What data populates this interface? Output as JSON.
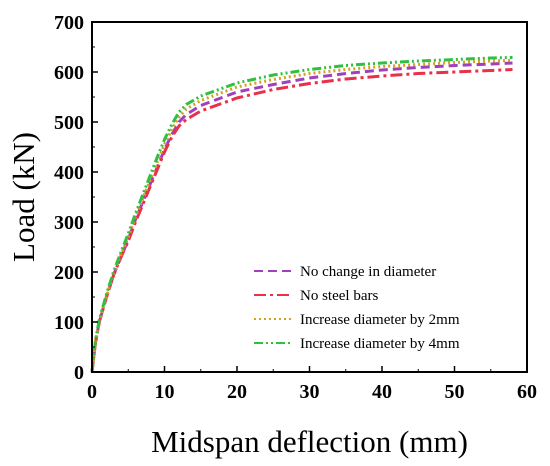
{
  "chart_data": {
    "type": "line",
    "title": "",
    "xlabel": "Midspan deflection (mm)",
    "ylabel": "Load (kN)",
    "xlim": [
      0,
      60
    ],
    "ylim": [
      0,
      700
    ],
    "x_ticks": [
      0,
      10,
      20,
      30,
      40,
      50,
      60
    ],
    "y_ticks": [
      0,
      100,
      200,
      300,
      400,
      500,
      600,
      700
    ],
    "grid": false,
    "legend_position": "bottom-right",
    "series": [
      {
        "name": "No change in diameter",
        "color": "#a040c0",
        "style": "dashed",
        "points": [
          [
            0,
            0
          ],
          [
            0.5,
            60
          ],
          [
            1,
            100
          ],
          [
            2,
            150
          ],
          [
            3,
            195
          ],
          [
            4,
            230
          ],
          [
            5,
            265
          ],
          [
            6,
            305
          ],
          [
            7,
            340
          ],
          [
            8,
            375
          ],
          [
            9,
            410
          ],
          [
            10,
            445
          ],
          [
            11,
            475
          ],
          [
            12,
            500
          ],
          [
            13,
            515
          ],
          [
            15,
            533
          ],
          [
            20,
            560
          ],
          [
            25,
            575
          ],
          [
            30,
            588
          ],
          [
            35,
            597
          ],
          [
            40,
            604
          ],
          [
            45,
            609
          ],
          [
            50,
            613
          ],
          [
            55,
            616
          ],
          [
            58,
            618
          ]
        ]
      },
      {
        "name": "No steel bars",
        "color": "#e8304a",
        "style": "dashdot",
        "points": [
          [
            0,
            0
          ],
          [
            0.5,
            60
          ],
          [
            1,
            100
          ],
          [
            2,
            150
          ],
          [
            3,
            195
          ],
          [
            4,
            230
          ],
          [
            5,
            262
          ],
          [
            6,
            300
          ],
          [
            7,
            335
          ],
          [
            8,
            370
          ],
          [
            9,
            405
          ],
          [
            10,
            440
          ],
          [
            11,
            470
          ],
          [
            12,
            492
          ],
          [
            13,
            505
          ],
          [
            15,
            522
          ],
          [
            20,
            548
          ],
          [
            25,
            565
          ],
          [
            30,
            577
          ],
          [
            35,
            586
          ],
          [
            40,
            592
          ],
          [
            45,
            597
          ],
          [
            50,
            600
          ],
          [
            55,
            603
          ],
          [
            58,
            605
          ]
        ]
      },
      {
        "name": "Increase diameter by 2mm",
        "color": "#d4a020",
        "style": "dotted",
        "points": [
          [
            0,
            0
          ],
          [
            0.5,
            62
          ],
          [
            1,
            102
          ],
          [
            2,
            152
          ],
          [
            3,
            198
          ],
          [
            4,
            235
          ],
          [
            5,
            270
          ],
          [
            6,
            310
          ],
          [
            7,
            347
          ],
          [
            8,
            383
          ],
          [
            9,
            420
          ],
          [
            10,
            455
          ],
          [
            11,
            485
          ],
          [
            12,
            510
          ],
          [
            13,
            526
          ],
          [
            15,
            543
          ],
          [
            20,
            570
          ],
          [
            25,
            585
          ],
          [
            30,
            597
          ],
          [
            35,
            605
          ],
          [
            40,
            611
          ],
          [
            45,
            615
          ],
          [
            50,
            619
          ],
          [
            55,
            622
          ],
          [
            58,
            623
          ]
        ]
      },
      {
        "name": "Increase diameter by 4mm",
        "color": "#30c040",
        "style": "dashdotdot",
        "points": [
          [
            0,
            0
          ],
          [
            0.5,
            65
          ],
          [
            1,
            105
          ],
          [
            2,
            156
          ],
          [
            3,
            202
          ],
          [
            4,
            240
          ],
          [
            5,
            277
          ],
          [
            6,
            317
          ],
          [
            7,
            355
          ],
          [
            8,
            392
          ],
          [
            9,
            430
          ],
          [
            10,
            465
          ],
          [
            11,
            495
          ],
          [
            12,
            520
          ],
          [
            13,
            535
          ],
          [
            15,
            552
          ],
          [
            20,
            578
          ],
          [
            25,
            594
          ],
          [
            30,
            605
          ],
          [
            35,
            613
          ],
          [
            40,
            618
          ],
          [
            45,
            622
          ],
          [
            50,
            625
          ],
          [
            55,
            628
          ],
          [
            58,
            629
          ]
        ]
      }
    ]
  }
}
